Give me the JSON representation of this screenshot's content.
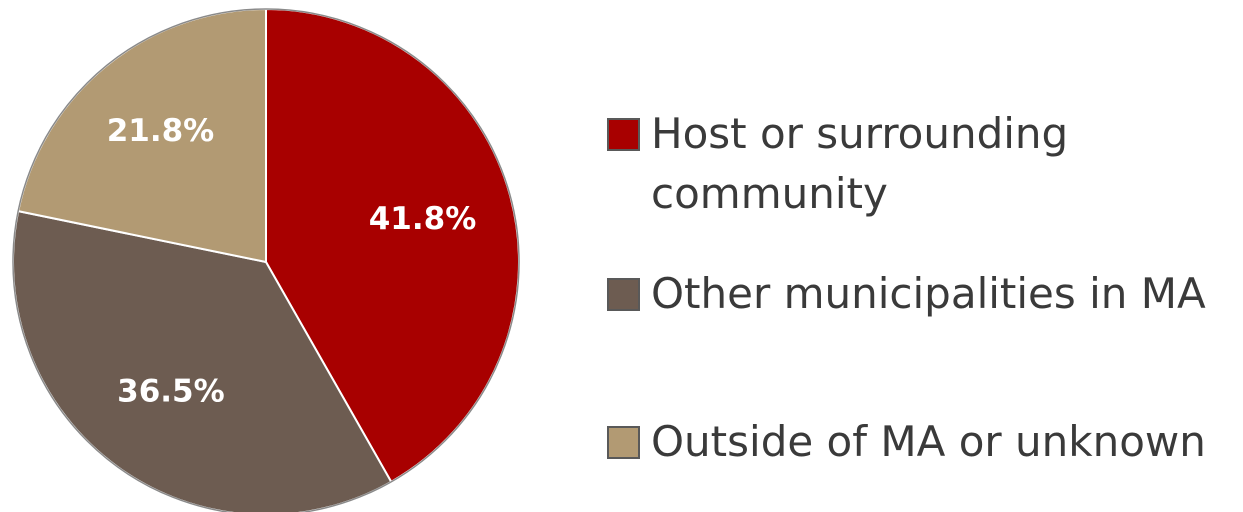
{
  "chart_data": {
    "type": "pie",
    "slices": [
      {
        "label": "Host or surrounding community",
        "value": 41.8,
        "value_label": "41.8%",
        "color": "#a80000"
      },
      {
        "label": "Other municipalities in MA",
        "value": 36.5,
        "value_label": "36.5%",
        "color": "#6d5c51"
      },
      {
        "label": "Outside of MA or unknown",
        "value": 21.8,
        "value_label": "21.8%",
        "color": "#b29a73"
      }
    ],
    "start_angle": "12 o'clock",
    "direction": "clockwise",
    "legend": {
      "placement": "right",
      "items": [
        {
          "line1": "Host or surrounding",
          "line2": "community",
          "color": "#a80000"
        },
        {
          "line1": "Other municipalities in MA",
          "color": "#6d5c51"
        },
        {
          "line1": "Outside of MA or unknown",
          "color": "#b29a73"
        }
      ]
    }
  }
}
